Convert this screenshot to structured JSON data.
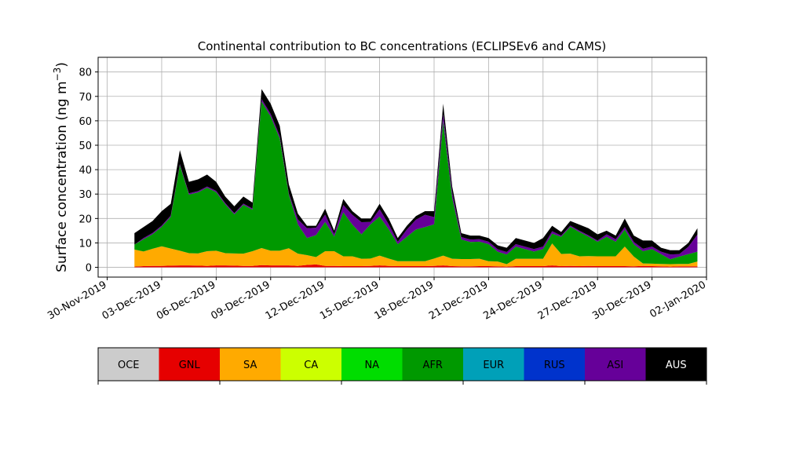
{
  "chart_data": {
    "type": "area",
    "stacked": true,
    "title": "Continental contribution to BC concentrations (ECLIPSEv6 and CAMS)",
    "ylabel_main": "Surface concentration (ng m",
    "ylabel_sup": "−3",
    "ylabel_close": ")",
    "xlabel": "",
    "xlim": [
      "2019-11-29T12:00",
      "2020-01-02T00:00"
    ],
    "ylim": [
      -4,
      86
    ],
    "yticks": [
      0,
      10,
      20,
      30,
      40,
      50,
      60,
      70,
      80
    ],
    "xticks": [
      {
        "date": "2019-11-30",
        "label": "30-Nov-2019"
      },
      {
        "date": "2019-12-03",
        "label": "03-Dec-2019"
      },
      {
        "date": "2019-12-06",
        "label": "06-Dec-2019"
      },
      {
        "date": "2019-12-09",
        "label": "09-Dec-2019"
      },
      {
        "date": "2019-12-12",
        "label": "12-Dec-2019"
      },
      {
        "date": "2019-12-15",
        "label": "15-Dec-2019"
      },
      {
        "date": "2019-12-18",
        "label": "18-Dec-2019"
      },
      {
        "date": "2019-12-21",
        "label": "21-Dec-2019"
      },
      {
        "date": "2019-12-24",
        "label": "24-Dec-2019"
      },
      {
        "date": "2019-12-27",
        "label": "27-Dec-2019"
      },
      {
        "date": "2019-12-30",
        "label": "30-Dec-2019"
      },
      {
        "date": "2020-01-02",
        "label": "02-Jan-2020"
      }
    ],
    "grid": true,
    "legend": "colorbar-below",
    "x": [
      "2019-12-01T12:00",
      "2019-12-02T00:00",
      "2019-12-02T12:00",
      "2019-12-03T00:00",
      "2019-12-03T12:00",
      "2019-12-04T00:00",
      "2019-12-04T12:00",
      "2019-12-05T00:00",
      "2019-12-05T12:00",
      "2019-12-06T00:00",
      "2019-12-06T12:00",
      "2019-12-07T00:00",
      "2019-12-07T12:00",
      "2019-12-08T00:00",
      "2019-12-08T12:00",
      "2019-12-09T00:00",
      "2019-12-09T12:00",
      "2019-12-10T00:00",
      "2019-12-10T12:00",
      "2019-12-11T00:00",
      "2019-12-11T12:00",
      "2019-12-12T00:00",
      "2019-12-12T12:00",
      "2019-12-13T00:00",
      "2019-12-13T12:00",
      "2019-12-14T00:00",
      "2019-12-14T12:00",
      "2019-12-15T00:00",
      "2019-12-15T12:00",
      "2019-12-16T00:00",
      "2019-12-16T12:00",
      "2019-12-17T00:00",
      "2019-12-17T12:00",
      "2019-12-18T00:00",
      "2019-12-18T12:00",
      "2019-12-19T00:00",
      "2019-12-19T12:00",
      "2019-12-20T00:00",
      "2019-12-20T12:00",
      "2019-12-21T00:00",
      "2019-12-21T12:00",
      "2019-12-22T00:00",
      "2019-12-22T12:00",
      "2019-12-23T00:00",
      "2019-12-23T12:00",
      "2019-12-24T00:00",
      "2019-12-24T12:00",
      "2019-12-25T00:00",
      "2019-12-25T12:00",
      "2019-12-26T00:00",
      "2019-12-26T12:00",
      "2019-12-27T00:00",
      "2019-12-27T12:00",
      "2019-12-28T00:00",
      "2019-12-28T12:00",
      "2019-12-29T00:00",
      "2019-12-29T12:00",
      "2019-12-30T00:00",
      "2019-12-30T12:00",
      "2019-12-31T00:00",
      "2019-12-31T12:00",
      "2020-01-01T00:00",
      "2020-01-01T12:00"
    ],
    "series": [
      {
        "name": "OCE",
        "color": "#cccccc",
        "values": [
          0,
          0,
          0,
          0,
          0,
          0,
          0,
          0,
          0,
          0,
          0,
          0,
          0,
          0,
          0,
          0,
          0,
          0,
          0,
          0,
          0,
          0,
          0,
          0,
          0,
          0,
          0,
          0,
          0,
          0,
          0,
          0,
          0,
          0,
          0,
          0,
          0,
          0,
          0,
          0,
          0,
          0,
          0,
          0,
          0,
          0,
          0,
          0,
          0,
          0,
          0,
          0,
          0,
          0,
          0,
          0,
          0,
          0,
          0,
          0,
          0,
          0,
          0
        ]
      },
      {
        "name": "GNL",
        "color": "#e60000",
        "values": [
          0.3,
          0.5,
          0.6,
          0.6,
          0.7,
          0.8,
          0.8,
          0.7,
          0.6,
          0.8,
          0.8,
          0.7,
          0.6,
          0.6,
          0.9,
          0.8,
          0.8,
          0.8,
          0.6,
          1.0,
          1.2,
          0.6,
          0.6,
          0.5,
          0.5,
          0.5,
          0.6,
          0.8,
          0.6,
          0.5,
          0.5,
          0.5,
          0.5,
          0.6,
          0.8,
          0.5,
          0.4,
          0.4,
          0.5,
          0.5,
          0.4,
          0.3,
          0.5,
          0.5,
          0.5,
          0.5,
          0.8,
          0.5,
          0.6,
          0.5,
          0.6,
          0.5,
          0.5,
          0.5,
          0.5,
          0.4,
          0.6,
          0.5,
          0.4,
          0.3,
          0.4,
          0.4,
          0.4
        ]
      },
      {
        "name": "SA",
        "color": "#ffaa00",
        "values": [
          7,
          6,
          7,
          8,
          7,
          6,
          5,
          5,
          6,
          6,
          5,
          5,
          5,
          6,
          7,
          6,
          6,
          7,
          5,
          4,
          3,
          6,
          6,
          4,
          4,
          3,
          3,
          4,
          3,
          2,
          2,
          2,
          2,
          3,
          4,
          3,
          3,
          3,
          3,
          2,
          2,
          1,
          3,
          3,
          3,
          3,
          9,
          5,
          5,
          4,
          4,
          4,
          4,
          4,
          8,
          4,
          1,
          1,
          1,
          1,
          1,
          1,
          2
        ]
      },
      {
        "name": "CA",
        "color": "#ccff00",
        "values": [
          0,
          0,
          0,
          0,
          0,
          0,
          0,
          0,
          0,
          0,
          0,
          0,
          0,
          0,
          0,
          0,
          0,
          0,
          0,
          0,
          0,
          0,
          0,
          0,
          0,
          0,
          0,
          0,
          0,
          0,
          0,
          0,
          0,
          0,
          0,
          0,
          0,
          0,
          0,
          0,
          0,
          0,
          0,
          0,
          0,
          0,
          0,
          0,
          0,
          0,
          0,
          0,
          0,
          0,
          0,
          0,
          0,
          0,
          0,
          0,
          0,
          0,
          0
        ]
      },
      {
        "name": "NA",
        "color": "#00dd00",
        "values": [
          0,
          0,
          0,
          0,
          0,
          0,
          0,
          0,
          0,
          0,
          0,
          0,
          0,
          0,
          0,
          0,
          0,
          0,
          0,
          0,
          0,
          0,
          0,
          0,
          0,
          0,
          0,
          0,
          0,
          0,
          0,
          0,
          0,
          0,
          0,
          0,
          0,
          0,
          0,
          0,
          0,
          0,
          0,
          0,
          0,
          0,
          0,
          0,
          0,
          0,
          0,
          0,
          0,
          0,
          0,
          0,
          0,
          0,
          0,
          0,
          0,
          0,
          0
        ]
      },
      {
        "name": "AFR",
        "color": "#009900",
        "values": [
          2,
          5,
          6,
          8,
          13,
          35,
          24,
          25,
          26,
          24,
          20,
          16,
          20,
          17,
          60,
          55,
          46,
          22,
          12,
          7,
          9,
          12,
          6,
          18,
          13,
          10,
          14,
          16,
          12,
          7,
          10,
          13,
          14,
          14,
          55,
          25,
          8,
          7,
          7,
          7,
          4,
          4,
          5,
          4,
          3,
          4,
          4,
          7,
          11,
          10,
          8,
          6,
          8,
          6,
          7,
          5,
          5,
          6,
          4,
          2,
          3,
          4,
          4
        ]
      },
      {
        "name": "EUR",
        "color": "#00a0b8",
        "values": [
          0,
          0,
          0,
          0,
          0,
          0,
          0,
          0,
          0,
          0,
          0,
          0,
          0,
          0,
          0,
          0,
          0,
          0,
          0,
          0,
          0,
          0,
          0,
          0,
          0,
          0,
          0,
          0,
          0,
          0,
          0,
          0,
          0,
          0,
          0,
          0,
          0,
          0,
          0,
          0,
          0,
          0,
          0,
          0,
          0,
          0,
          0,
          0,
          0,
          0,
          0,
          0,
          0,
          0,
          0,
          0,
          0,
          0,
          0,
          0,
          0,
          0,
          0
        ]
      },
      {
        "name": "RUS",
        "color": "#0033cc",
        "values": [
          0,
          0,
          0,
          0,
          0,
          0,
          0,
          0,
          0,
          0,
          0,
          0,
          0,
          0,
          0,
          0,
          0,
          0,
          0,
          0,
          0,
          0,
          0,
          0,
          0,
          0,
          0,
          0,
          0,
          0,
          0,
          0,
          0,
          0,
          0,
          0,
          0,
          0,
          0,
          0,
          0,
          0,
          0,
          0,
          0,
          0,
          0,
          0,
          0,
          0,
          0,
          0,
          0,
          0,
          0,
          0,
          0,
          0,
          0,
          0,
          0,
          0,
          0
        ]
      },
      {
        "name": "ASI",
        "color": "#660099",
        "values": [
          0,
          0.5,
          0.5,
          0.5,
          0.5,
          0.5,
          0.5,
          0.5,
          0.5,
          0.5,
          0.5,
          0.5,
          0.5,
          0.5,
          1,
          1,
          1,
          0.5,
          2,
          4,
          3,
          3,
          1,
          3,
          4,
          5,
          1,
          3,
          2,
          1,
          3,
          4,
          5,
          3,
          3,
          2,
          1,
          1,
          1,
          1,
          1,
          1,
          1,
          1,
          1,
          1,
          1,
          0.5,
          0.5,
          0.5,
          0.5,
          0.5,
          1,
          1,
          1,
          1,
          1,
          1,
          1,
          2,
          1,
          3,
          7
        ]
      },
      {
        "name": "AUS",
        "color": "#000000",
        "values": [
          4.7,
          4.5,
          4.9,
          5.9,
          4.8,
          5.7,
          4.7,
          4.8,
          4.9,
          3.7,
          2.7,
          2.8,
          2.9,
          2.4,
          4.1,
          4.2,
          4.2,
          3.7,
          2.4,
          1.0,
          0.8,
          2.4,
          1.4,
          2.5,
          1.5,
          1.5,
          1.4,
          2.2,
          2.4,
          1.5,
          1.5,
          1.5,
          1.5,
          2.4,
          4.2,
          2.5,
          1.6,
          1.6,
          1.5,
          1.5,
          1.6,
          1.7,
          2.5,
          2.5,
          2.5,
          3.5,
          2.2,
          1.5,
          1.9,
          2.5,
          2.9,
          2.5,
          1.5,
          1.5,
          3.5,
          2.6,
          3.4,
          2.5,
          1.6,
          1.7,
          1.6,
          1.6,
          2.6
        ]
      }
    ]
  }
}
